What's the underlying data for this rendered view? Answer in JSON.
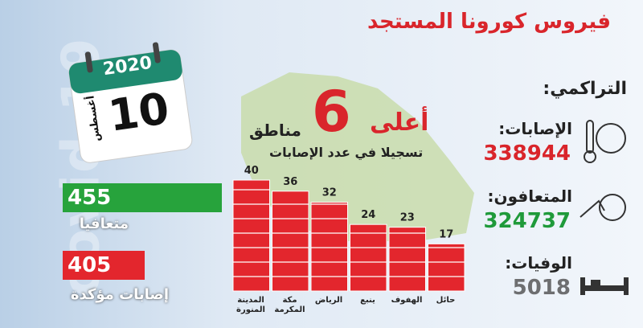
{
  "title": "فيروس كورونا المستجد",
  "background_text": "covid-19",
  "calendar": {
    "year": "2020",
    "day": "10",
    "month": "أغسطس"
  },
  "cumulative": {
    "heading": "التراكمي:",
    "items": [
      {
        "label": "الإصابات:",
        "value": 338944,
        "color": "#d9252b"
      },
      {
        "label": "المتعافون:",
        "value": 324737,
        "color": "#1f9a3a"
      },
      {
        "label": "الوفيات:",
        "value": 5018,
        "color": "#6d6e70"
      }
    ]
  },
  "daily": {
    "recovered": {
      "value": 455,
      "label": "متعافيا",
      "color": "#27a33c"
    },
    "confirmed": {
      "value": 405,
      "label": "إصابات مؤكدة",
      "color": "#e3262d"
    }
  },
  "chart_data": {
    "type": "bar",
    "title": {
      "prefix": "أعلى",
      "number": 6,
      "suffix": "مناطق"
    },
    "subtitle": "تسجيلا في عدد الإصابات",
    "categories": [
      "المدينة المنورة",
      "مكة المكرمة",
      "الرياض",
      "ينبع",
      "الهفوف",
      "حائل"
    ],
    "values": [
      40,
      36,
      32,
      24,
      23,
      17
    ],
    "color": "#e3262d"
  }
}
